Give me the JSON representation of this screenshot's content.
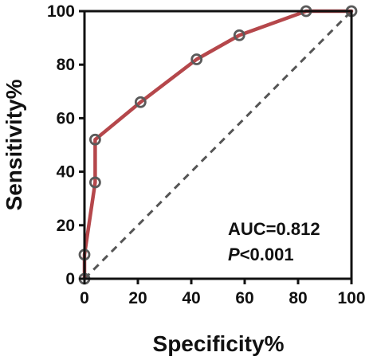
{
  "chart_data": {
    "type": "line",
    "title": "",
    "xlabel": "Specificity%",
    "ylabel": "Sensitivity%",
    "xlim": [
      0,
      100
    ],
    "ylim": [
      0,
      100
    ],
    "x_ticks": [
      "0",
      "20",
      "40",
      "60",
      "80",
      "100"
    ],
    "y_ticks": [
      "0",
      "20",
      "40",
      "60",
      "80",
      "100"
    ],
    "grid": false,
    "legend": "none",
    "series": [
      {
        "points": [
          {
            "x": 0,
            "y": 0
          },
          {
            "x": 0,
            "y": 9
          },
          {
            "x": 4,
            "y": 36
          },
          {
            "x": 4,
            "y": 52
          },
          {
            "x": 21,
            "y": 66
          },
          {
            "x": 42,
            "y": 82
          },
          {
            "x": 58,
            "y": 91
          },
          {
            "x": 83,
            "y": 100
          },
          {
            "x": 100,
            "y": 100
          }
        ],
        "color": "#b5474b",
        "marker_color": "#5a5a5a"
      }
    ],
    "reference_line": {
      "from": {
        "x": 0,
        "y": 0
      },
      "to": {
        "x": 100,
        "y": 100
      },
      "style": "dashed",
      "color": "#555555"
    },
    "annotations": {
      "auc_text": "AUC=0.812",
      "p_italic": "P",
      "p_rest": "<0.001"
    }
  }
}
